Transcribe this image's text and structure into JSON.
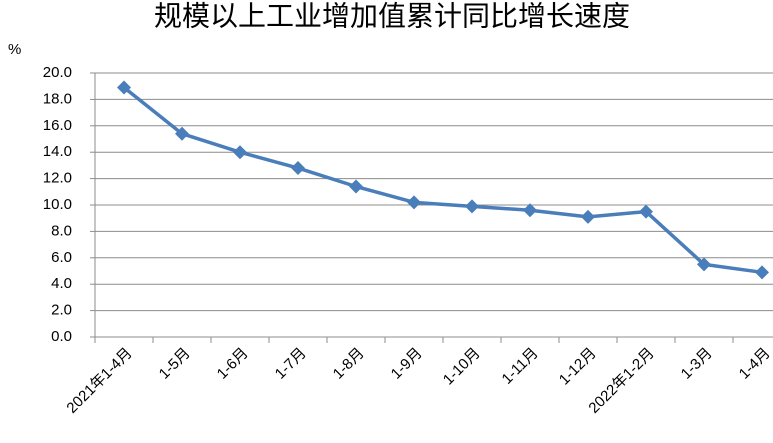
{
  "chart_data": {
    "type": "line",
    "title": "规模以上工业增加值累计同比增长速度",
    "y_label": "%",
    "categories": [
      "2021年1-4月",
      "1-5月",
      "1-6月",
      "1-7月",
      "1-8月",
      "1-9月",
      "1-10月",
      "1-11月",
      "1-12月",
      "2022年1-2月",
      "1-3月",
      "1-4月"
    ],
    "series": [
      {
        "name": "累计同比增长速度",
        "color": "#4a7ebb",
        "values": [
          18.9,
          15.4,
          14.0,
          12.8,
          11.4,
          10.2,
          9.9,
          9.6,
          9.1,
          9.5,
          5.5,
          4.9
        ]
      }
    ],
    "ylim": [
      0,
      20
    ],
    "yticks": [
      {
        "value": 0,
        "label": "0.0"
      },
      {
        "value": 2,
        "label": "2.0"
      },
      {
        "value": 4,
        "label": "4.0"
      },
      {
        "value": 6,
        "label": "6.0"
      },
      {
        "value": 8,
        "label": "8.0"
      },
      {
        "value": 10,
        "label": "10.0"
      },
      {
        "value": 12,
        "label": "12.0"
      },
      {
        "value": 14,
        "label": "14.0"
      },
      {
        "value": 16,
        "label": "16.0"
      },
      {
        "value": 18,
        "label": "18.0"
      },
      {
        "value": 20,
        "label": "20.0"
      }
    ],
    "grid": true
  }
}
